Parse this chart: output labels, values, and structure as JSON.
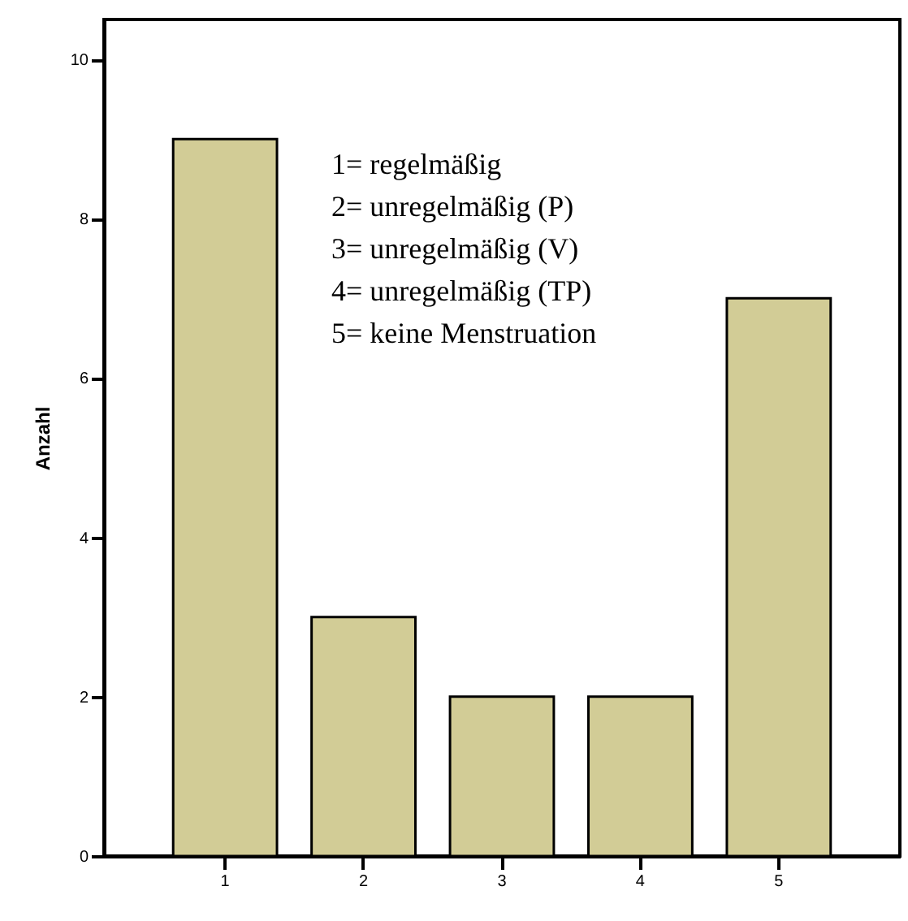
{
  "chart_data": {
    "type": "bar",
    "ylabel": "Anzahl",
    "categories": [
      "1",
      "2",
      "3",
      "4",
      "5"
    ],
    "values": [
      9,
      3,
      2,
      2,
      7
    ],
    "color": "#d2cc96",
    "ylim": [
      0,
      10.5
    ],
    "yticks": [
      0,
      2,
      4,
      6,
      8,
      10
    ],
    "grid": false,
    "annotations": [
      "1= regelmäßig",
      "2= unregelmäßig (P)",
      "3= unregelmäßig (V)",
      "4= unregelmäßig (TP)",
      "5= keine Menstruation"
    ]
  }
}
